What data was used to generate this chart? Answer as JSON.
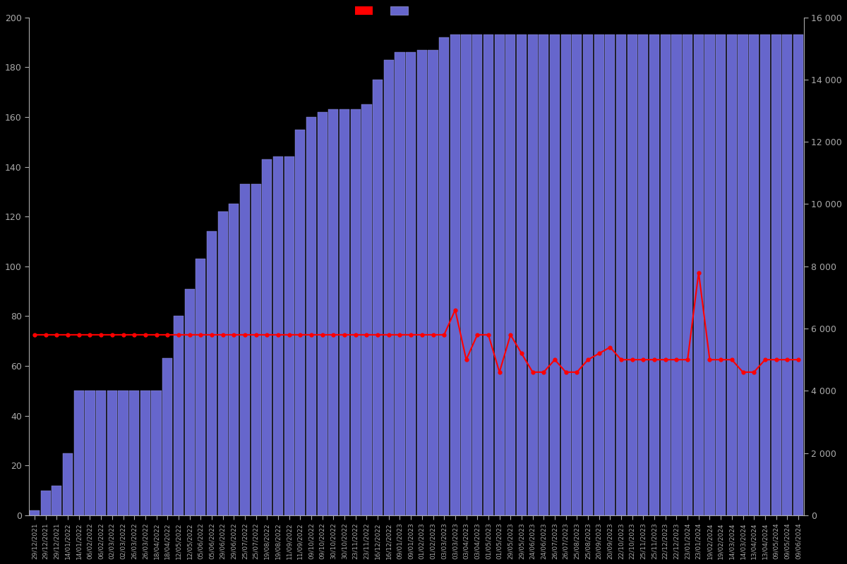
{
  "background_color": "#000000",
  "bar_color": "#6666cc",
  "bar_edge_color": "#9999dd",
  "line_color": "#ff0000",
  "line_marker": "o",
  "line_marker_color": "#ff0000",
  "left_ylim": [
    0,
    200
  ],
  "right_ylim": [
    0,
    16000
  ],
  "left_yticks": [
    0,
    20,
    40,
    60,
    80,
    100,
    120,
    140,
    160,
    180,
    200
  ],
  "right_yticks": [
    0,
    2000,
    4000,
    6000,
    8000,
    10000,
    12000,
    14000,
    16000
  ],
  "text_color": "#aaaaaa",
  "dates": [
    "29/12/2021",
    "14/01/2022",
    "06/02/2022",
    "02/03/2022",
    "26/03/2022",
    "18/04/2022",
    "12/05/2022",
    "05/06/2022",
    "29/06/2022",
    "25/07/2022",
    "19/08/2022",
    "11/09/2022",
    "09/10/2022",
    "30/10/2022",
    "23/11/2022",
    "16/12/2022",
    "09/01/2023",
    "01/02/2023",
    "03/03/2023",
    "03/04/2023",
    "01/05/2023",
    "29/05/2023",
    "24/06/2023",
    "26/07/2023",
    "25/08/2023",
    "20/09/2023",
    "22/10/2023",
    "25/11/2023",
    "22/12/2023",
    "23/01/2024",
    "19/02/2024",
    "14/03/2024",
    "13/04/2024",
    "09/05/2024",
    "09/06/2024"
  ],
  "bar_values": [
    2,
    10,
    12,
    25,
    50,
    50,
    50,
    50,
    50,
    50,
    50,
    50,
    63,
    80,
    91,
    103,
    114,
    122,
    125,
    133,
    133,
    143,
    144,
    144,
    155,
    160,
    162,
    163,
    163,
    163,
    165,
    175,
    183,
    186,
    186,
    187,
    187,
    192,
    193,
    193,
    193,
    193,
    193,
    193,
    193,
    193,
    193,
    193,
    193,
    193,
    193,
    193,
    193,
    193,
    193,
    193,
    193,
    193,
    193,
    193,
    193,
    193,
    193,
    193,
    193,
    193,
    193,
    193,
    193,
    193
  ],
  "line_values": [
    5800,
    5800,
    5800,
    5800,
    5800,
    5800,
    5800,
    5800,
    5800,
    5800,
    5800,
    5800,
    5800,
    5800,
    5800,
    5800,
    5800,
    5800,
    5800,
    5800,
    5800,
    5800,
    5800,
    5800,
    5800,
    5800,
    5800,
    5800,
    5800,
    5800,
    5800,
    5800,
    5800,
    5800,
    5800,
    5800,
    5800,
    5800,
    6600,
    5000,
    5800,
    5800,
    4600,
    5800,
    5200,
    4600,
    4600,
    5000,
    4600,
    4600,
    5000,
    5200,
    5400,
    5000,
    5000,
    5000,
    5000,
    5000,
    5000,
    5000,
    7800,
    5000,
    5000,
    5000,
    4600,
    4600,
    5000,
    5000,
    5000,
    5000
  ]
}
